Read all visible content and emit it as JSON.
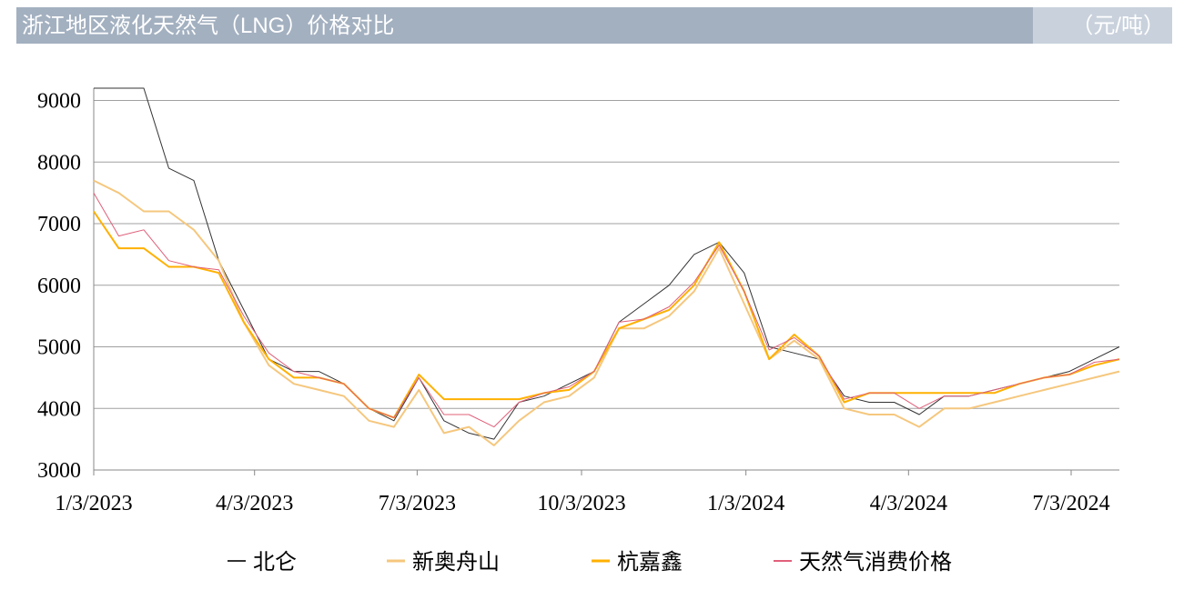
{
  "chart_data": {
    "type": "line",
    "title": "浙江地区液化天然气（LNG）价格对比",
    "unit": "（元/吨）",
    "x": [
      "2023-01-03",
      "2023-01-17",
      "2023-01-31",
      "2023-02-14",
      "2023-02-28",
      "2023-03-14",
      "2023-03-28",
      "2023-04-11",
      "2023-04-25",
      "2023-05-09",
      "2023-05-23",
      "2023-06-06",
      "2023-06-20",
      "2023-07-04",
      "2023-07-18",
      "2023-08-01",
      "2023-08-15",
      "2023-08-29",
      "2023-09-12",
      "2023-09-26",
      "2023-10-10",
      "2023-10-24",
      "2023-11-07",
      "2023-11-21",
      "2023-12-05",
      "2023-12-19",
      "2024-01-02",
      "2024-01-16",
      "2024-01-30",
      "2024-02-13",
      "2024-02-27",
      "2024-03-12",
      "2024-03-26",
      "2024-04-09",
      "2024-04-23",
      "2024-05-07",
      "2024-05-21",
      "2024-06-04",
      "2024-06-18",
      "2024-07-02",
      "2024-07-16",
      "2024-07-30"
    ],
    "series": [
      {
        "name": "北仑",
        "color": "#333333",
        "width": 1,
        "values": [
          9200,
          9200,
          9200,
          7900,
          7700,
          6400,
          5600,
          4800,
          4600,
          4600,
          4400,
          4000,
          3800,
          4500,
          3800,
          3600,
          3500,
          4100,
          4200,
          4400,
          4600,
          5400,
          5700,
          6000,
          6500,
          6700,
          6200,
          5000,
          4900,
          4800,
          4200,
          4100,
          4100,
          3900,
          4200,
          4200,
          4300,
          4400,
          4500,
          4600,
          4800,
          5000
        ]
      },
      {
        "name": "新奥舟山",
        "color": "#f5c77e",
        "width": 2,
        "values": [
          7700,
          7500,
          7200,
          7200,
          6900,
          6400,
          5400,
          4700,
          4400,
          4300,
          4200,
          3800,
          3700,
          4300,
          3600,
          3700,
          3400,
          3800,
          4100,
          4200,
          4500,
          5300,
          5300,
          5500,
          5900,
          6600,
          5700,
          4800,
          5100,
          4800,
          4000,
          3900,
          3900,
          3700,
          4000,
          4000,
          4100,
          4200,
          4300,
          4400,
          4500,
          4600
        ]
      },
      {
        "name": "杭嘉鑫",
        "color": "#ffb000",
        "width": 2,
        "values": [
          7200,
          6600,
          6600,
          6300,
          6300,
          6200,
          5400,
          4800,
          4500,
          4500,
          4400,
          4000,
          3850,
          4550,
          4150,
          4150,
          4150,
          4150,
          4250,
          4300,
          4600,
          5300,
          5450,
          5600,
          6000,
          6700,
          5900,
          4800,
          5200,
          4850,
          4100,
          4250,
          4250,
          4250,
          4250,
          4250,
          4250,
          4400,
          4500,
          4550,
          4700,
          4800
        ]
      },
      {
        "name": "天然气消费价格",
        "color": "#e0607a",
        "width": 1,
        "values": [
          7500,
          6800,
          6900,
          6400,
          6300,
          6250,
          5500,
          4900,
          4600,
          4500,
          4400,
          4000,
          3850,
          4500,
          3900,
          3900,
          3700,
          4100,
          4250,
          4350,
          4600,
          5400,
          5450,
          5650,
          6050,
          6650,
          5900,
          4950,
          5150,
          4850,
          4150,
          4250,
          4250,
          4000,
          4200,
          4200,
          4300,
          4400,
          4500,
          4550,
          4750,
          4800
        ]
      }
    ],
    "xlim": [
      "2023-01-03",
      "2024-07-30"
    ],
    "xticks": [
      {
        "value": "2023-01-03",
        "label": "1/3/2023"
      },
      {
        "value": "2023-04-03",
        "label": "4/3/2023"
      },
      {
        "value": "2023-07-03",
        "label": "7/3/2023"
      },
      {
        "value": "2023-10-03",
        "label": "10/3/2023"
      },
      {
        "value": "2024-01-03",
        "label": "1/3/2024"
      },
      {
        "value": "2024-04-03",
        "label": "4/3/2024"
      },
      {
        "value": "2024-07-03",
        "label": "7/3/2024"
      }
    ],
    "ylim": [
      3000,
      9200
    ],
    "yticks": [
      3000,
      4000,
      5000,
      6000,
      7000,
      8000,
      9000
    ],
    "grid": true,
    "legend": "bottom"
  }
}
